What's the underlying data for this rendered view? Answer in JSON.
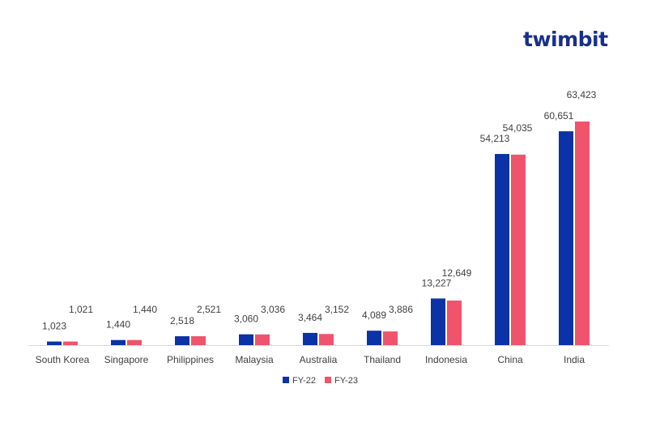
{
  "brand": {
    "logo_text": "twimbit"
  },
  "colors": {
    "fy22": "#0b32a6",
    "fy23": "#f0546a",
    "brand": "#1a2f8a",
    "brand_dot": "#e8334a"
  },
  "chart_data": {
    "type": "bar",
    "categories": [
      "South Korea",
      "Singapore",
      "Philippines",
      "Malaysia",
      "Australia",
      "Thailand",
      "Indonesia",
      "China",
      "India"
    ],
    "series": [
      {
        "name": "FY-22",
        "values": [
          1023,
          1440,
          2518,
          3060,
          3464,
          4089,
          13227,
          54213,
          60651
        ]
      },
      {
        "name": "FY-23",
        "values": [
          1021,
          1440,
          2521,
          3036,
          3152,
          3886,
          12649,
          54035,
          63423
        ]
      }
    ],
    "data_labels": {
      "FY-22": [
        "1,023",
        "1,440",
        "2,518",
        "3,060",
        "3,464",
        "4,089",
        "13,227",
        "54,213",
        "60,651"
      ],
      "FY-23": [
        "1,021",
        "1,440",
        "2,521",
        "3,036",
        "3,152",
        "3,886",
        "12,649",
        "54,035",
        "63,423"
      ]
    },
    "ylim": [
      0,
      63423
    ],
    "legend": "bottom",
    "grid": false
  }
}
